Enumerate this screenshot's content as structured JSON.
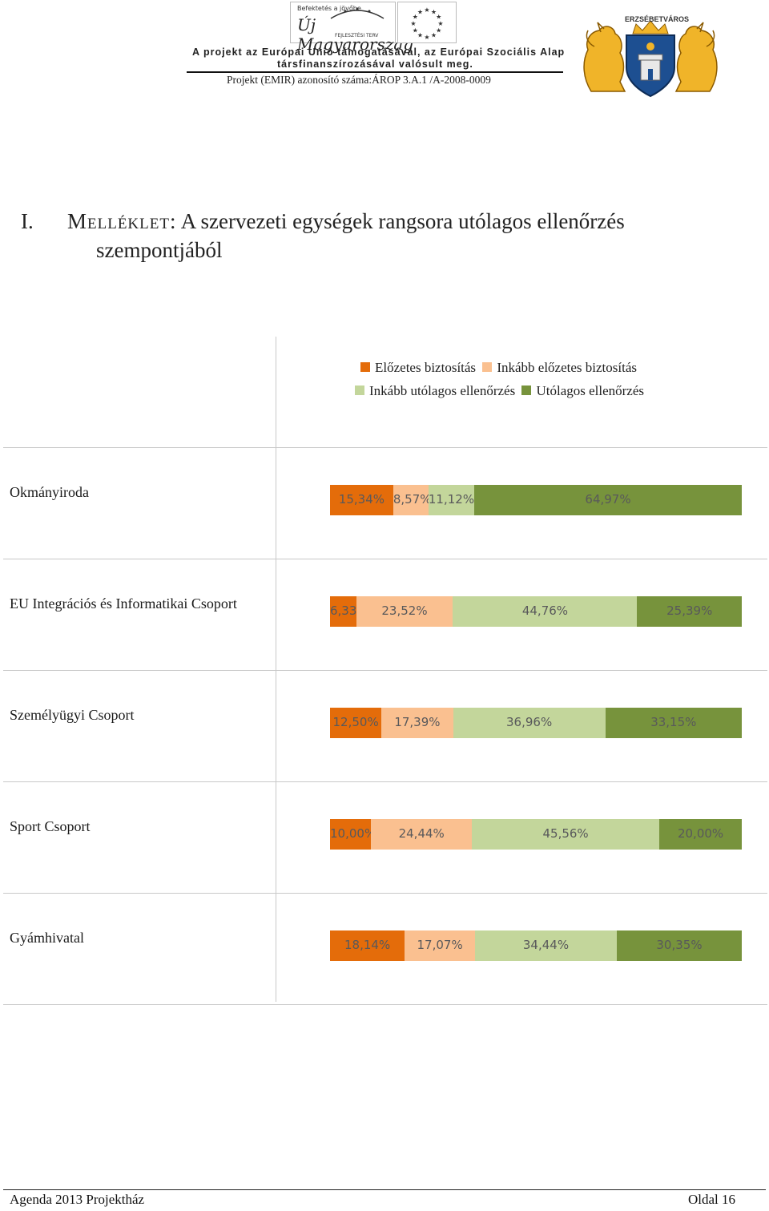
{
  "header": {
    "logo_um_small": "Befektetés a jövőbe",
    "logo_um_text": "Új Magyarország",
    "logo_um_sub": "FEJLESZTÉSI TERV",
    "line1": "A projekt az Európai Unió támogatásával, az Európai Szociális Alap",
    "line2": "társfinanszírozásával valósult meg.",
    "line3": "Projekt (EMIR) azonosító száma:ÁROP   3.A.1 /A-2008-0009",
    "crest_label": "ERZSÉBETVÁROS"
  },
  "title": {
    "number": "I.",
    "word": "Melléklet:",
    "line1_rest": " A szervezeti egységek rangsora utólagos ellenőrzés",
    "line2": "szempontjából"
  },
  "chart_data": {
    "type": "bar",
    "orientation": "horizontal",
    "stacked": true,
    "percent": true,
    "title": "",
    "xlabel": "",
    "ylabel": "",
    "xlim": [
      0,
      100
    ],
    "legend_position": "top",
    "categories": [
      "Okmányiroda",
      "EU Integrációs és Informatikai Csoport",
      "Személyügyi Csoport",
      "Sport Csoport",
      "Gyámhivatal"
    ],
    "series": [
      {
        "name": "Előzetes biztosítás",
        "color": "#e46c0a",
        "values": [
          15.34,
          6.33,
          12.5,
          10.0,
          18.14
        ],
        "labels": [
          "15,34%",
          "6,33%",
          "12,50%",
          "10,00%",
          "18,14%"
        ]
      },
      {
        "name": "Inkább előzetes biztosítás",
        "color": "#fac090",
        "values": [
          8.57,
          23.52,
          17.39,
          24.44,
          17.07
        ],
        "labels": [
          "8,57%",
          "23,52%",
          "17,39%",
          "24,44%",
          "17,07%"
        ]
      },
      {
        "name": "Inkább utólagos ellenőrzés",
        "color": "#c3d69b",
        "values": [
          11.12,
          44.76,
          36.96,
          45.56,
          34.44
        ],
        "labels": [
          "11,12%",
          "44,76%",
          "36,96%",
          "45,56%",
          "34,44%"
        ]
      },
      {
        "name": "Utólagos ellenőrzés",
        "color": "#77933c",
        "values": [
          64.97,
          25.39,
          33.15,
          20.0,
          30.35
        ],
        "labels": [
          "64,97%",
          "25,39%",
          "33,15%",
          "20,00%",
          "30,35%"
        ]
      }
    ]
  },
  "footer": {
    "left": "Agenda 2013 Projektház",
    "right": "Oldal 16"
  }
}
